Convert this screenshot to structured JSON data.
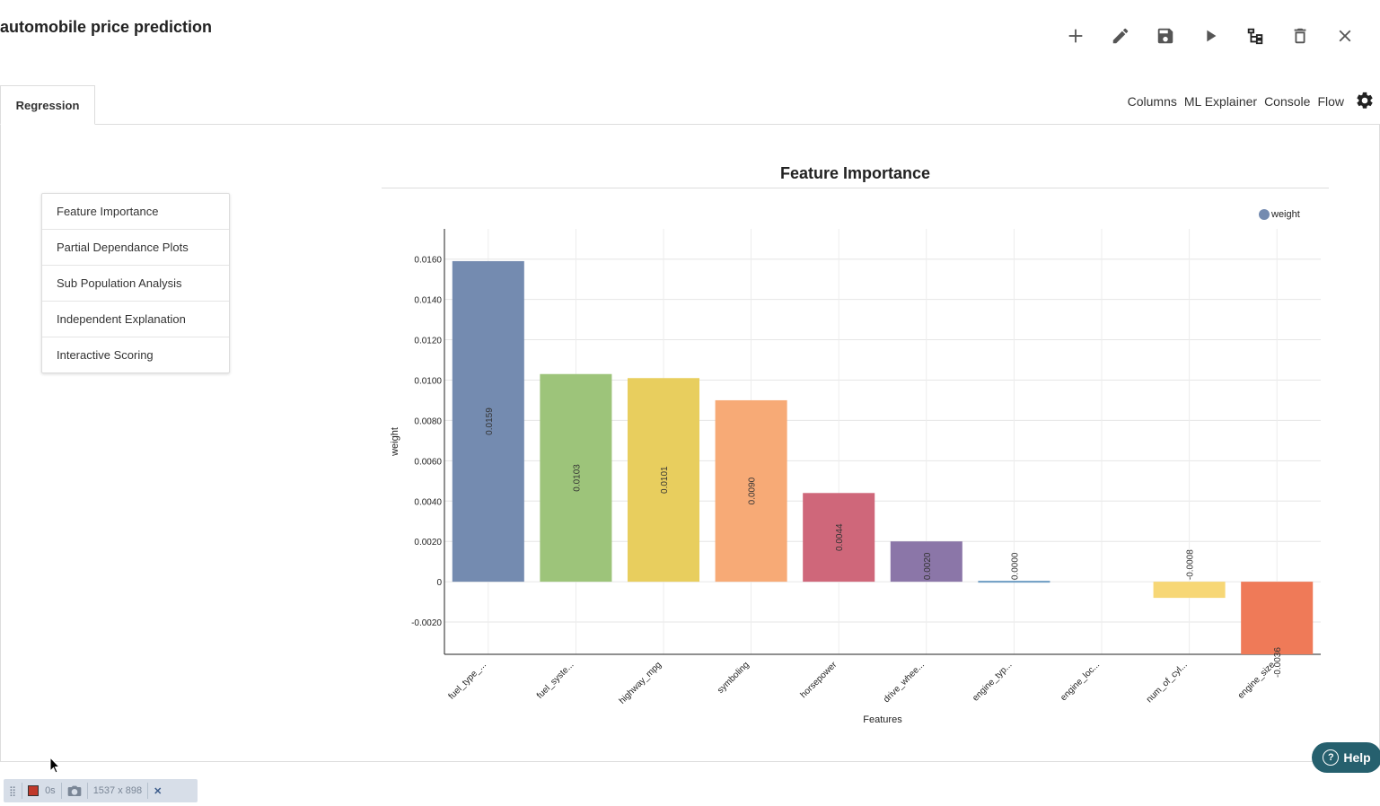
{
  "app": {
    "title": "automobile price prediction"
  },
  "toolbar": {
    "icons": [
      "plus-icon",
      "pencil-icon",
      "save-icon",
      "play-icon",
      "tree-icon",
      "trash-icon",
      "close-icon"
    ]
  },
  "tabs": [
    {
      "label": "Regression"
    }
  ],
  "top_links": [
    "Columns",
    "ML Explainer",
    "Console",
    "Flow"
  ],
  "menu": {
    "items": [
      "Feature Importance",
      "Partial Dependance Plots",
      "Sub Population Analysis",
      "Independent Explanation",
      "Interactive Scoring"
    ]
  },
  "chart_data": {
    "type": "bar",
    "title": "Feature Importance",
    "xlabel": "Features",
    "ylabel": "weight",
    "legend": [
      "weight"
    ],
    "legend_position": "top-right",
    "categories": [
      "fuel_type_...",
      "fuel_syste...",
      "highway_mpg",
      "symboling",
      "horsepower",
      "drive_whee...",
      "engine_typ...",
      "engine_loc...",
      "num_of_cyl...",
      "engine_size"
    ],
    "values": [
      0.0159,
      0.0103,
      0.0101,
      0.009,
      0.0044,
      0.002,
      0.0,
      null,
      -0.0008,
      -0.0036
    ],
    "data_labels": [
      "0.0159",
      "0.0103",
      "0.0101",
      "0.0090",
      "0.0044",
      "0.0020",
      "0.0000",
      "",
      "-0.0008",
      "-0.0036"
    ],
    "colors": [
      "#748bb0",
      "#9dc47a",
      "#e8ce5e",
      "#f7aa76",
      "#cf677a",
      "#8b76a8",
      "#6c9bc2",
      "#cccccc",
      "#f7d776",
      "#ef7a58"
    ],
    "yticks": [
      -0.002,
      0,
      0.002,
      0.004,
      0.006,
      0.008,
      0.01,
      0.012,
      0.014,
      0.016
    ],
    "ytick_labels": [
      "-0.0020",
      "0",
      "0.0020",
      "0.0040",
      "0.0060",
      "0.0080",
      "0.0100",
      "0.0120",
      "0.0140",
      "0.0160"
    ],
    "ylim": [
      -0.0036,
      0.0175
    ],
    "grid": true
  },
  "help": {
    "label": "Help"
  },
  "debug_bar": {
    "timer": "0s",
    "size": "1537 x 898"
  }
}
